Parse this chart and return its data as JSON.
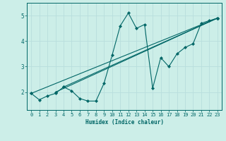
{
  "title": "",
  "xlabel": "Humidex (Indice chaleur)",
  "ylabel": "",
  "bg_color": "#cceee8",
  "line_color": "#006666",
  "xlim": [
    -0.5,
    23.5
  ],
  "ylim": [
    1.3,
    5.5
  ],
  "yticks": [
    2,
    3,
    4,
    5
  ],
  "xticks": [
    0,
    1,
    2,
    3,
    4,
    5,
    6,
    7,
    8,
    9,
    10,
    11,
    12,
    13,
    14,
    15,
    16,
    17,
    18,
    19,
    20,
    21,
    22,
    23
  ],
  "series1_x": [
    0,
    1,
    2,
    3,
    4,
    5,
    6,
    7,
    8,
    9,
    10,
    11,
    12,
    13,
    14,
    15,
    16,
    17,
    18,
    19,
    20,
    21,
    22,
    23
  ],
  "series1_y": [
    1.95,
    1.7,
    1.85,
    1.95,
    2.2,
    2.05,
    1.75,
    1.65,
    1.65,
    2.35,
    3.45,
    4.6,
    5.1,
    4.5,
    4.65,
    2.15,
    3.35,
    3.0,
    3.5,
    3.75,
    3.9,
    4.7,
    4.8,
    4.9
  ],
  "series2_x": [
    0,
    23
  ],
  "series2_y": [
    1.95,
    4.9
  ],
  "series3_x": [
    3,
    23
  ],
  "series3_y": [
    2.0,
    4.9
  ],
  "series4_x": [
    4,
    23
  ],
  "series4_y": [
    2.2,
    4.9
  ],
  "grid_color": "#b8dedd",
  "markersize": 2.2,
  "linewidth": 0.8
}
